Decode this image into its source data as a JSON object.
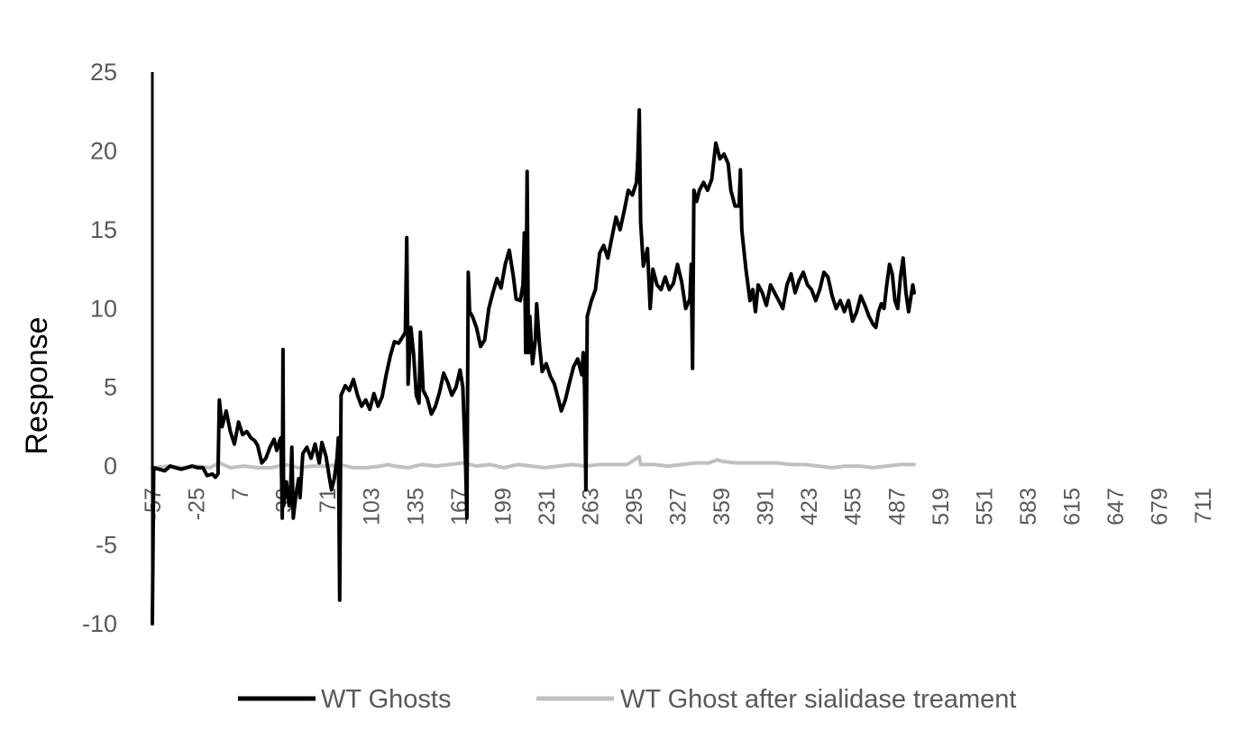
{
  "chart_data": {
    "type": "line",
    "title": "",
    "xlabel": "",
    "ylabel": "Response",
    "ylim": [
      -10,
      25
    ],
    "xlim": [
      -57,
      736
    ],
    "y_ticks": [
      -10,
      -5,
      0,
      5,
      10,
      15,
      20,
      25
    ],
    "x_ticks": [
      -57,
      -25,
      7,
      39,
      71,
      103,
      135,
      167,
      199,
      231,
      263,
      295,
      327,
      359,
      391,
      423,
      455,
      487,
      519,
      551,
      583,
      615,
      647,
      679,
      711
    ],
    "grid": false,
    "legend_position": "bottom",
    "series": [
      {
        "name": "WT Ghosts",
        "color": "#000000",
        "points": [
          [
            -57,
            -10
          ],
          [
            -56,
            -0.1
          ],
          [
            -52,
            -0.2
          ],
          [
            -48,
            -0.3
          ],
          [
            -44,
            0
          ],
          [
            -40,
            -0.1
          ],
          [
            -36,
            -0.2
          ],
          [
            -32,
            -0.1
          ],
          [
            -28,
            0
          ],
          [
            -24,
            -0.1
          ],
          [
            -20,
            -0.1
          ],
          [
            -17,
            -0.6
          ],
          [
            -13,
            -0.5
          ],
          [
            -11,
            -0.7
          ],
          [
            -9,
            -0.5
          ],
          [
            -8,
            4.2
          ],
          [
            -6,
            2.5
          ],
          [
            -3,
            3.5
          ],
          [
            0,
            2.2
          ],
          [
            3,
            1.4
          ],
          [
            6,
            2.8
          ],
          [
            9,
            2.0
          ],
          [
            12,
            2.2
          ],
          [
            15,
            1.8
          ],
          [
            18,
            1.6
          ],
          [
            20,
            1.3
          ],
          [
            23,
            0.2
          ],
          [
            26,
            0.5
          ],
          [
            29,
            1.2
          ],
          [
            32,
            1.7
          ],
          [
            34,
            1.0
          ],
          [
            36,
            1.6
          ],
          [
            37,
            1.8
          ],
          [
            38,
            -3.3
          ],
          [
            38.5,
            7.4
          ],
          [
            39,
            -2.5
          ],
          [
            41,
            -1.0
          ],
          [
            43,
            -2.5
          ],
          [
            44,
            -1.8
          ],
          [
            45,
            1.2
          ],
          [
            46,
            -3.3
          ],
          [
            48,
            -1.8
          ],
          [
            50,
            -0.8
          ],
          [
            51,
            -2.0
          ],
          [
            53,
            0.8
          ],
          [
            56,
            1.2
          ],
          [
            59,
            0.5
          ],
          [
            62,
            1.4
          ],
          [
            65,
            0.2
          ],
          [
            67,
            1.5
          ],
          [
            70,
            0.6
          ],
          [
            72,
            -0.5
          ],
          [
            74,
            -1.5
          ],
          [
            76,
            -0.8
          ],
          [
            78,
            0.5
          ],
          [
            79,
            1.8
          ],
          [
            80,
            -8.5
          ],
          [
            81,
            4.5
          ],
          [
            84,
            5.1
          ],
          [
            87,
            4.8
          ],
          [
            90,
            5.5
          ],
          [
            93,
            4.5
          ],
          [
            96,
            3.8
          ],
          [
            99,
            4.2
          ],
          [
            102,
            3.6
          ],
          [
            105,
            4.6
          ],
          [
            108,
            3.8
          ],
          [
            111,
            4.4
          ],
          [
            114,
            5.8
          ],
          [
            117,
            7.0
          ],
          [
            120,
            7.9
          ],
          [
            123,
            7.8
          ],
          [
            126,
            8.2
          ],
          [
            128,
            8.5
          ],
          [
            129,
            14.5
          ],
          [
            130,
            5.2
          ],
          [
            132,
            8.8
          ],
          [
            134,
            7.1
          ],
          [
            136,
            4.5
          ],
          [
            138,
            4.0
          ],
          [
            139,
            8.5
          ],
          [
            141,
            4.8
          ],
          [
            144,
            4.3
          ],
          [
            147,
            3.3
          ],
          [
            150,
            3.8
          ],
          [
            153,
            4.7
          ],
          [
            156,
            5.9
          ],
          [
            159,
            5.3
          ],
          [
            162,
            4.5
          ],
          [
            165,
            5.0
          ],
          [
            168,
            6.1
          ],
          [
            170,
            5.0
          ],
          [
            172,
            0.2
          ],
          [
            173,
            -3.3
          ],
          [
            174,
            12.3
          ],
          [
            175,
            9.8
          ],
          [
            177,
            9.5
          ],
          [
            180,
            8.8
          ],
          [
            183,
            7.6
          ],
          [
            186,
            8.0
          ],
          [
            189,
            10.0
          ],
          [
            192,
            11.0
          ],
          [
            195,
            11.9
          ],
          [
            198,
            11.3
          ],
          [
            201,
            12.8
          ],
          [
            204,
            13.7
          ],
          [
            207,
            12.0
          ],
          [
            209,
            10.6
          ],
          [
            212,
            10.5
          ],
          [
            214,
            11.5
          ],
          [
            215,
            14.8
          ],
          [
            216,
            7.2
          ],
          [
            217,
            18.7
          ],
          [
            218,
            7.2
          ],
          [
            219,
            9.5
          ],
          [
            221,
            6.5
          ],
          [
            223,
            8.0
          ],
          [
            224,
            10.3
          ],
          [
            226,
            7.8
          ],
          [
            228,
            6.0
          ],
          [
            231,
            6.5
          ],
          [
            234,
            5.7
          ],
          [
            237,
            5.2
          ],
          [
            240,
            4.2
          ],
          [
            242,
            3.5
          ],
          [
            245,
            4.2
          ],
          [
            248,
            5.3
          ],
          [
            251,
            6.3
          ],
          [
            254,
            6.8
          ],
          [
            257,
            5.8
          ],
          [
            258,
            7.2
          ],
          [
            259,
            5.0
          ],
          [
            260,
            -1.5
          ],
          [
            261,
            9.5
          ],
          [
            264,
            10.5
          ],
          [
            267,
            11.2
          ],
          [
            270,
            13.5
          ],
          [
            273,
            14.0
          ],
          [
            276,
            13.2
          ],
          [
            279,
            14.5
          ],
          [
            282,
            15.8
          ],
          [
            285,
            15.0
          ],
          [
            288,
            16.2
          ],
          [
            291,
            17.5
          ],
          [
            294,
            17.2
          ],
          [
            297,
            18.0
          ],
          [
            298,
            19.5
          ],
          [
            299,
            22.6
          ],
          [
            300,
            15.5
          ],
          [
            302,
            12.7
          ],
          [
            305,
            13.8
          ],
          [
            307,
            10.0
          ],
          [
            309,
            12.5
          ],
          [
            312,
            11.5
          ],
          [
            315,
            11.2
          ],
          [
            318,
            12.0
          ],
          [
            321,
            11.2
          ],
          [
            324,
            11.6
          ],
          [
            327,
            12.8
          ],
          [
            330,
            11.7
          ],
          [
            333,
            10.0
          ],
          [
            336,
            10.6
          ],
          [
            337,
            12.8
          ],
          [
            338,
            6.2
          ],
          [
            339,
            17.5
          ],
          [
            341,
            16.8
          ],
          [
            343,
            17.5
          ],
          [
            346,
            18.0
          ],
          [
            349,
            17.5
          ],
          [
            352,
            18.2
          ],
          [
            355,
            20.5
          ],
          [
            358,
            19.5
          ],
          [
            361,
            19.8
          ],
          [
            364,
            19.2
          ],
          [
            366,
            17.5
          ],
          [
            369,
            16.5
          ],
          [
            372,
            16.5
          ],
          [
            373,
            18.8
          ],
          [
            374,
            15.0
          ],
          [
            377,
            12.5
          ],
          [
            380,
            10.5
          ],
          [
            382,
            11.2
          ],
          [
            384,
            9.8
          ],
          [
            386,
            11.5
          ],
          [
            389,
            11.0
          ],
          [
            392,
            10.2
          ],
          [
            395,
            11.5
          ],
          [
            398,
            11.0
          ],
          [
            401,
            10.5
          ],
          [
            404,
            10.0
          ],
          [
            407,
            11.5
          ],
          [
            410,
            12.2
          ],
          [
            413,
            11.0
          ],
          [
            416,
            11.8
          ],
          [
            419,
            12.3
          ],
          [
            422,
            11.5
          ],
          [
            425,
            11.2
          ],
          [
            428,
            10.5
          ],
          [
            431,
            11.2
          ],
          [
            434,
            12.3
          ],
          [
            437,
            12.0
          ],
          [
            440,
            10.8
          ],
          [
            443,
            10.0
          ],
          [
            446,
            10.5
          ],
          [
            449,
            9.8
          ],
          [
            452,
            10.5
          ],
          [
            455,
            9.2
          ],
          [
            458,
            9.8
          ],
          [
            461,
            10.8
          ],
          [
            464,
            10.2
          ],
          [
            467,
            9.5
          ],
          [
            470,
            9.0
          ],
          [
            472,
            8.8
          ],
          [
            474,
            9.8
          ],
          [
            476,
            10.3
          ],
          [
            478,
            10.0
          ],
          [
            480,
            11.5
          ],
          [
            482,
            12.8
          ],
          [
            484,
            12.2
          ],
          [
            486,
            10.5
          ],
          [
            488,
            10.0
          ],
          [
            490,
            12.0
          ],
          [
            492,
            13.2
          ],
          [
            494,
            11.0
          ],
          [
            496,
            9.8
          ],
          [
            499,
            11.5
          ],
          [
            500,
            11.0
          ]
        ]
      },
      {
        "name": "WT Ghost after sialidase treament",
        "color": "#c0c0c0",
        "points": [
          [
            -57,
            -0.1
          ],
          [
            -45,
            0
          ],
          [
            -35,
            -0.1
          ],
          [
            -25,
            0
          ],
          [
            -15,
            -0.1
          ],
          [
            -8,
            0.2
          ],
          [
            0,
            -0.1
          ],
          [
            10,
            0
          ],
          [
            20,
            -0.1
          ],
          [
            30,
            -0.1
          ],
          [
            40,
            0.1
          ],
          [
            50,
            -0.1
          ],
          [
            60,
            0
          ],
          [
            70,
            0
          ],
          [
            80,
            0.1
          ],
          [
            90,
            -0.1
          ],
          [
            100,
            -0.1
          ],
          [
            110,
            0
          ],
          [
            115,
            0.1
          ],
          [
            120,
            0
          ],
          [
            130,
            -0.1
          ],
          [
            140,
            0.1
          ],
          [
            150,
            0
          ],
          [
            160,
            0.1
          ],
          [
            170,
            0.2
          ],
          [
            180,
            0
          ],
          [
            190,
            0.1
          ],
          [
            200,
            -0.1
          ],
          [
            210,
            0.1
          ],
          [
            220,
            0
          ],
          [
            230,
            -0.1
          ],
          [
            240,
            0
          ],
          [
            250,
            0.1
          ],
          [
            260,
            0
          ],
          [
            270,
            0.1
          ],
          [
            280,
            0.1
          ],
          [
            290,
            0.1
          ],
          [
            299,
            0.6
          ],
          [
            300,
            0.1
          ],
          [
            310,
            0.1
          ],
          [
            320,
            0
          ],
          [
            330,
            0.1
          ],
          [
            340,
            0.2
          ],
          [
            350,
            0.2
          ],
          [
            356,
            0.4
          ],
          [
            360,
            0.3
          ],
          [
            370,
            0.2
          ],
          [
            380,
            0.2
          ],
          [
            390,
            0.2
          ],
          [
            400,
            0.2
          ],
          [
            410,
            0.1
          ],
          [
            420,
            0.1
          ],
          [
            430,
            0
          ],
          [
            440,
            -0.1
          ],
          [
            450,
            0
          ],
          [
            460,
            0
          ],
          [
            470,
            -0.1
          ],
          [
            480,
            0
          ],
          [
            490,
            0.1
          ],
          [
            500,
            0.1
          ]
        ]
      }
    ]
  },
  "legend": {
    "items": [
      {
        "label": "WT Ghosts",
        "color": "#000000"
      },
      {
        "label": "WT Ghost after sialidase treament",
        "color": "#c0c0c0"
      }
    ]
  }
}
